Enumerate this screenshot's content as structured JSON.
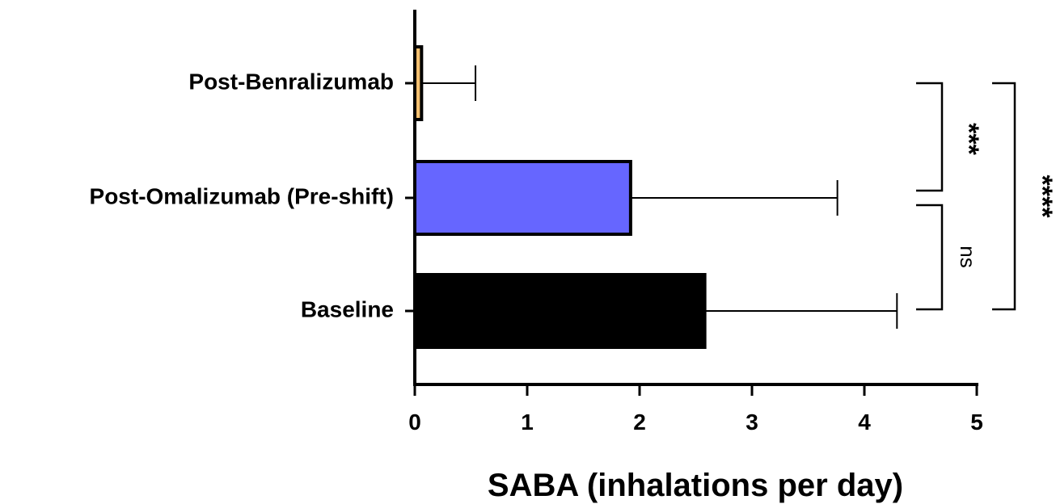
{
  "chart_data": {
    "type": "bar",
    "orientation": "horizontal",
    "categories": [
      "Post-Benralizumab",
      "Post-Omalizumab (Pre-shift)",
      "Baseline"
    ],
    "values": [
      0.06,
      1.92,
      2.58
    ],
    "error_upper": [
      0.54,
      3.76,
      4.29
    ],
    "colors": [
      "#f5c071",
      "#6666ff",
      "#000000"
    ],
    "xlabel": "SABA (inhalations per day)",
    "xlim": [
      0,
      5
    ],
    "xticks": [
      "0",
      "1",
      "2",
      "3",
      "4",
      "5"
    ],
    "grid": false,
    "legend": "none",
    "significance": [
      {
        "between": [
          "Post-Benralizumab",
          "Post-Omalizumab (Pre-shift)"
        ],
        "label": "***"
      },
      {
        "between": [
          "Post-Omalizumab (Pre-shift)",
          "Baseline"
        ],
        "label": "ns"
      },
      {
        "between": [
          "Post-Benralizumab",
          "Baseline"
        ],
        "label": "****"
      }
    ]
  }
}
